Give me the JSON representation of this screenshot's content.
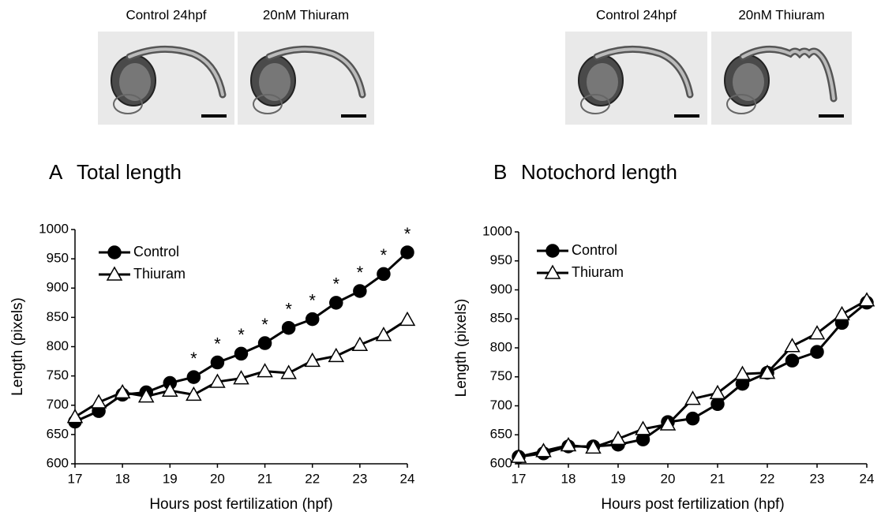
{
  "chart_data": [
    {
      "type": "line",
      "panel": "A",
      "title": "Total length",
      "images": [
        "Control 24hpf",
        "20nM Thiuram"
      ],
      "x_label": "Hours post fertilization (hpf)",
      "y_label": "Length (pixels)",
      "x": [
        17,
        17.5,
        18,
        18.5,
        19,
        19.5,
        20,
        20.5,
        21,
        21.5,
        22,
        22.5,
        23,
        23.5,
        24
      ],
      "series": [
        {
          "name": "Control",
          "color": "#000000",
          "marker": "circle",
          "marker_fill": "#000000",
          "values": [
            672,
            690,
            718,
            722,
            738,
            748,
            773,
            788,
            806,
            832,
            847,
            875,
            895,
            924,
            961
          ]
        },
        {
          "name": "Thiuram",
          "color": "#000000",
          "marker": "triangle",
          "marker_fill": "#ffffff",
          "values": [
            680,
            705,
            722,
            715,
            725,
            718,
            740,
            746,
            758,
            755,
            776,
            784,
            803,
            820,
            846
          ]
        }
      ],
      "annotations": [
        {
          "x": 19.5,
          "text": "*"
        },
        {
          "x": 20,
          "text": "*"
        },
        {
          "x": 20.5,
          "text": "*"
        },
        {
          "x": 21,
          "text": "*"
        },
        {
          "x": 21.5,
          "text": "*"
        },
        {
          "x": 22,
          "text": "*"
        },
        {
          "x": 22.5,
          "text": "*"
        },
        {
          "x": 23,
          "text": "*"
        },
        {
          "x": 23.5,
          "text": "*"
        },
        {
          "x": 24,
          "text": "*"
        }
      ],
      "xlim": [
        17,
        24
      ],
      "xticks": [
        17,
        18,
        19,
        20,
        21,
        22,
        23,
        24
      ],
      "ylim": [
        600,
        1000
      ],
      "yticks": [
        600,
        650,
        700,
        750,
        800,
        850,
        900,
        950,
        1000
      ],
      "grid": false,
      "legend": "upper left"
    },
    {
      "type": "line",
      "panel": "B",
      "title": "Notochord length",
      "images": [
        "Control 24hpf",
        "20nM Thiuram"
      ],
      "x_label": "Hours post fertilization (hpf)",
      "y_label": "Length (pixels)",
      "x": [
        17,
        17.5,
        18,
        18.5,
        19,
        19.5,
        20,
        20.5,
        21,
        21.5,
        22,
        22.5,
        23,
        23.5,
        24
      ],
      "series": [
        {
          "name": "Control",
          "color": "#000000",
          "marker": "circle",
          "marker_fill": "#000000",
          "values": [
            612,
            618,
            630,
            630,
            633,
            642,
            672,
            678,
            703,
            738,
            757,
            778,
            793,
            843,
            878
          ]
        },
        {
          "name": "Thiuram",
          "color": "#000000",
          "marker": "triangle",
          "marker_fill": "#ffffff",
          "values": [
            612,
            622,
            632,
            628,
            643,
            660,
            668,
            712,
            722,
            755,
            757,
            803,
            825,
            858,
            882
          ]
        }
      ],
      "xlim": [
        17,
        24
      ],
      "xticks": [
        17,
        18,
        19,
        20,
        21,
        22,
        23,
        24
      ],
      "ylim": [
        600,
        1000
      ],
      "yticks": [
        600,
        650,
        700,
        750,
        800,
        850,
        900,
        950,
        1000
      ],
      "grid": false,
      "legend": "upper left"
    }
  ]
}
